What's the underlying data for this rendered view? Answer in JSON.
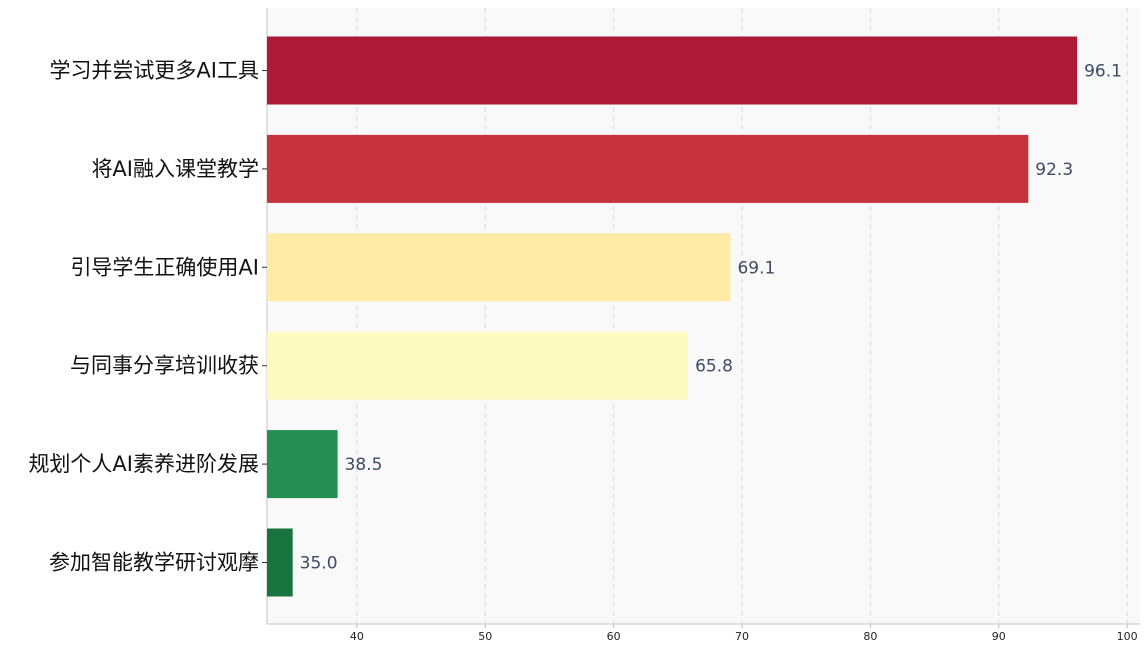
{
  "chart_data": {
    "type": "bar",
    "orientation": "horizontal",
    "categories": [
      "学习并尝试更多AI工具",
      "将AI融入课堂教学",
      "引导学生正确使用AI",
      "与同事分享培训收获",
      "规划个人AI素养进阶发展",
      "参加智能教学研讨观摩"
    ],
    "values": [
      96.1,
      92.3,
      69.1,
      65.8,
      38.5,
      35.0
    ],
    "value_labels": [
      "96.1",
      "92.3",
      "69.1",
      "65.8",
      "38.5",
      "35.0"
    ],
    "colors": [
      "#ac1a38",
      "#c7333d",
      "#feeba5",
      "#fefbc1",
      "#258f53",
      "#1a7440"
    ],
    "xlim": [
      33,
      101
    ],
    "xticks": [
      40,
      50,
      60,
      70,
      80,
      90,
      100
    ],
    "xtick_labels": [
      "40",
      "50",
      "60",
      "70",
      "80",
      "90",
      "100"
    ],
    "title": "",
    "xlabel": "",
    "ylabel": "",
    "grid": "vertical-dashed",
    "legend": "none",
    "plot_background": "#f9f9f9"
  }
}
